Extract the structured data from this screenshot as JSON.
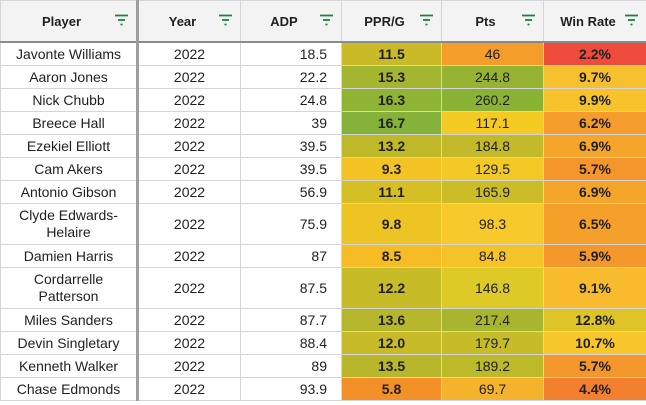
{
  "columns": [
    {
      "key": "player",
      "label": "Player"
    },
    {
      "key": "year",
      "label": "Year"
    },
    {
      "key": "adp",
      "label": "ADP"
    },
    {
      "key": "ppr",
      "label": "PPR/G"
    },
    {
      "key": "pts",
      "label": "Pts"
    },
    {
      "key": "win",
      "label": "Win Rate"
    }
  ],
  "filter_icon": "filter-icon",
  "rows": [
    {
      "player": "Javonte Williams",
      "year": "2022",
      "adp": "18.5",
      "ppr": "11.5",
      "pts": "46",
      "win": "2.2%",
      "ppr_color": "#c9bb27",
      "pts_color": "#f59d2a",
      "win_color": "#ee4b3c"
    },
    {
      "player": "Aaron Jones",
      "year": "2022",
      "adp": "22.2",
      "ppr": "15.3",
      "pts": "244.8",
      "win": "9.7%",
      "ppr_color": "#a4b530",
      "pts_color": "#96b432",
      "win_color": "#f7c02e"
    },
    {
      "player": "Nick Chubb",
      "year": "2022",
      "adp": "24.8",
      "ppr": "16.3",
      "pts": "260.2",
      "win": "9.9%",
      "ppr_color": "#8fb433",
      "pts_color": "#8ab335",
      "win_color": "#f8c22d"
    },
    {
      "player": "Breece Hall",
      "year": "2022",
      "adp": "39",
      "ppr": "16.7",
      "pts": "117.1",
      "win": "6.2%",
      "ppr_color": "#85b238",
      "pts_color": "#f5ca22",
      "win_color": "#f49c2c"
    },
    {
      "player": "Ezekiel Elliott",
      "year": "2022",
      "adp": "39.5",
      "ppr": "13.2",
      "pts": "184.8",
      "win": "6.9%",
      "ppr_color": "#bfb92a",
      "pts_color": "#c3ba2a",
      "win_color": "#f5a52a"
    },
    {
      "player": "Cam Akers",
      "year": "2022",
      "adp": "39.5",
      "ppr": "9.3",
      "pts": "129.5",
      "win": "5.7%",
      "ppr_color": "#f3c323",
      "pts_color": "#f3c926",
      "win_color": "#f4962c"
    },
    {
      "player": "Antonio Gibson",
      "year": "2022",
      "adp": "56.9",
      "ppr": "11.1",
      "pts": "165.9",
      "win": "6.9%",
      "ppr_color": "#d6bf25",
      "pts_color": "#ccbc28",
      "win_color": "#f5a52a"
    },
    {
      "player": "Clyde Edwards-Helaire",
      "year": "2022",
      "adp": "75.9",
      "ppr": "9.8",
      "pts": "98.3",
      "win": "6.5%",
      "ppr_color": "#eec425",
      "pts_color": "#f7c92a",
      "win_color": "#f5a02b",
      "tall": true
    },
    {
      "player": "Damien Harris",
      "year": "2022",
      "adp": "87",
      "ppr": "8.5",
      "pts": "84.8",
      "win": "5.9%",
      "ppr_color": "#f5bc25",
      "pts_color": "#f5c328",
      "win_color": "#f4982c"
    },
    {
      "player": "Cordarrelle Patterson",
      "year": "2022",
      "adp": "87.5",
      "ppr": "12.2",
      "pts": "146.8",
      "win": "9.1%",
      "ppr_color": "#c7bc28",
      "pts_color": "#deca26",
      "win_color": "#f7bb2d",
      "tall": true
    },
    {
      "player": "Miles Sanders",
      "year": "2022",
      "adp": "87.7",
      "ppr": "13.6",
      "pts": "217.4",
      "win": "12.8%",
      "ppr_color": "#b6b72d",
      "pts_color": "#a8b52f",
      "win_color": "#dfc428"
    },
    {
      "player": "Devin Singletary",
      "year": "2022",
      "adp": "88.4",
      "ppr": "12.0",
      "pts": "179.7",
      "win": "10.7%",
      "ppr_color": "#c8bb29",
      "pts_color": "#c6bb29",
      "win_color": "#f8c72b"
    },
    {
      "player": "Kenneth Walker",
      "year": "2022",
      "adp": "89",
      "ppr": "13.5",
      "pts": "189.2",
      "win": "5.7%",
      "ppr_color": "#b8b72c",
      "pts_color": "#bcb92b",
      "win_color": "#f4962c"
    },
    {
      "player": "Chase Edmonds",
      "year": "2022",
      "adp": "93.9",
      "ppr": "5.8",
      "pts": "69.7",
      "win": "4.4%",
      "ppr_color": "#f39027",
      "pts_color": "#f4b32a",
      "win_color": "#f2802f"
    }
  ]
}
